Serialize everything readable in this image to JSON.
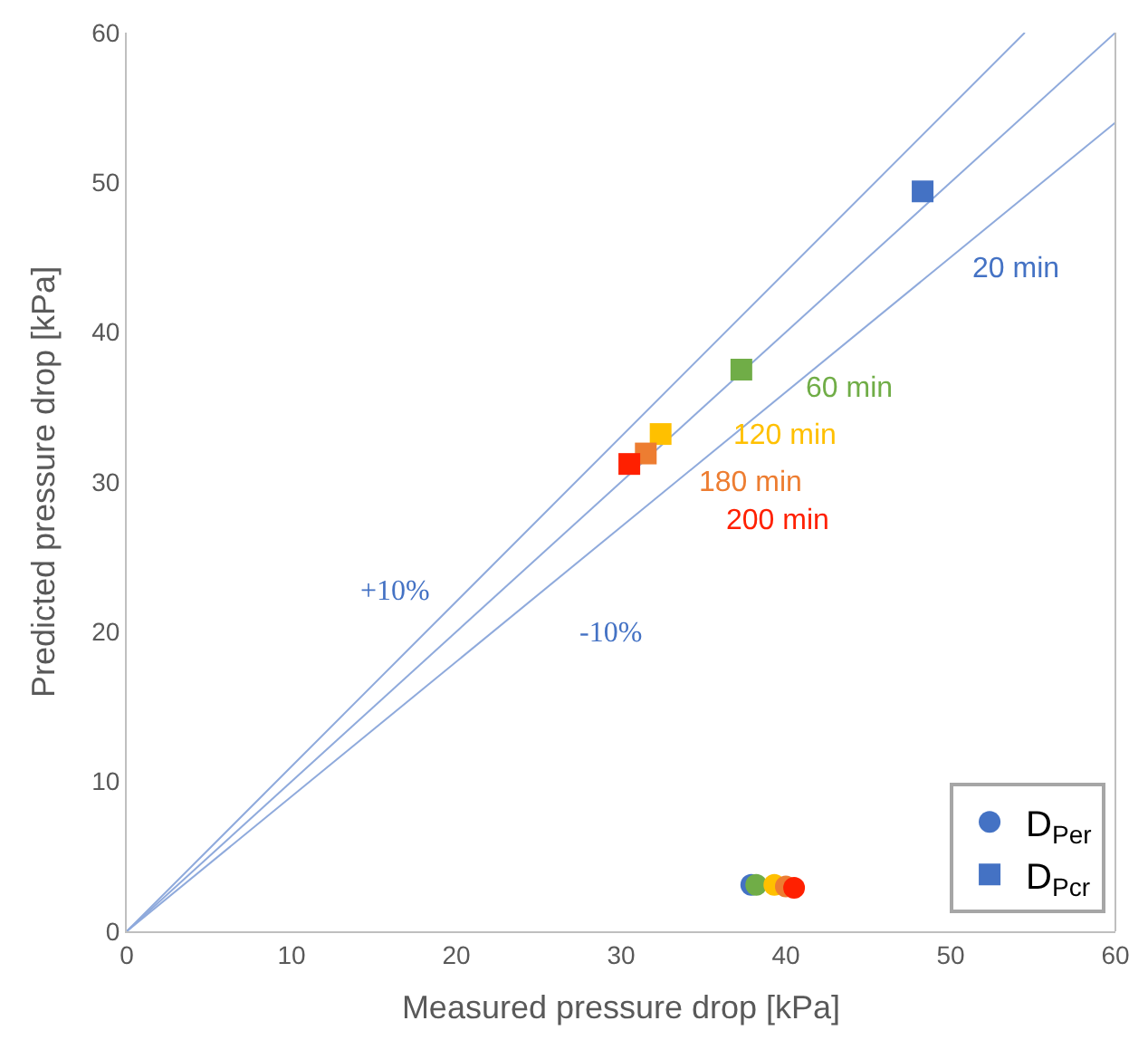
{
  "chart_data": {
    "type": "scatter",
    "xlabel": "Measured pressure drop [kPa]",
    "ylabel": "Predicted pressure drop [kPa]",
    "xlim": [
      0,
      60
    ],
    "ylim": [
      0,
      60
    ],
    "xticks": [
      0,
      10,
      20,
      30,
      40,
      50,
      60
    ],
    "yticks": [
      0,
      10,
      20,
      30,
      40,
      50,
      60
    ],
    "legend": "bottom right",
    "series": [
      {
        "type": "line",
        "color": "#8faadc",
        "x": [
          0,
          60
        ],
        "values": [
          0,
          60
        ],
        "marker": "none"
      },
      {
        "type": "line",
        "color": "#8faadc",
        "x": [
          0,
          54.5
        ],
        "values": [
          0,
          60
        ],
        "marker": "none"
      },
      {
        "type": "line",
        "color": "#8faadc",
        "x": [
          0,
          60
        ],
        "values": [
          0,
          54
        ],
        "marker": "none"
      },
      {
        "name": "D$_{Per}$",
        "marker": "circle",
        "color": "#4472c4",
        "colors": [
          "#4472c4",
          "#70ad47",
          "#ffc000",
          "#ed7d31",
          "#ff2000"
        ],
        "x": [
          37.9,
          38.2,
          39.3,
          40.0,
          40.5
        ],
        "values": [
          3.1,
          3.1,
          3.1,
          3.0,
          2.9
        ]
      },
      {
        "name": "D$_{Pcr}$",
        "marker": "square",
        "color": "#4472c4",
        "colors": [
          "#4472c4",
          "#70ad47",
          "#ffc000",
          "#ed7d31",
          "#ff2000"
        ],
        "x": [
          48.3,
          37.3,
          32.4,
          31.5,
          30.5
        ],
        "values": [
          49.4,
          37.5,
          33.2,
          31.9,
          31.2
        ]
      }
    ],
    "annotations": [
      "+10%",
      "-10%",
      "20 min",
      "60 min",
      "120 min",
      "180 min",
      "200 min"
    ]
  }
}
